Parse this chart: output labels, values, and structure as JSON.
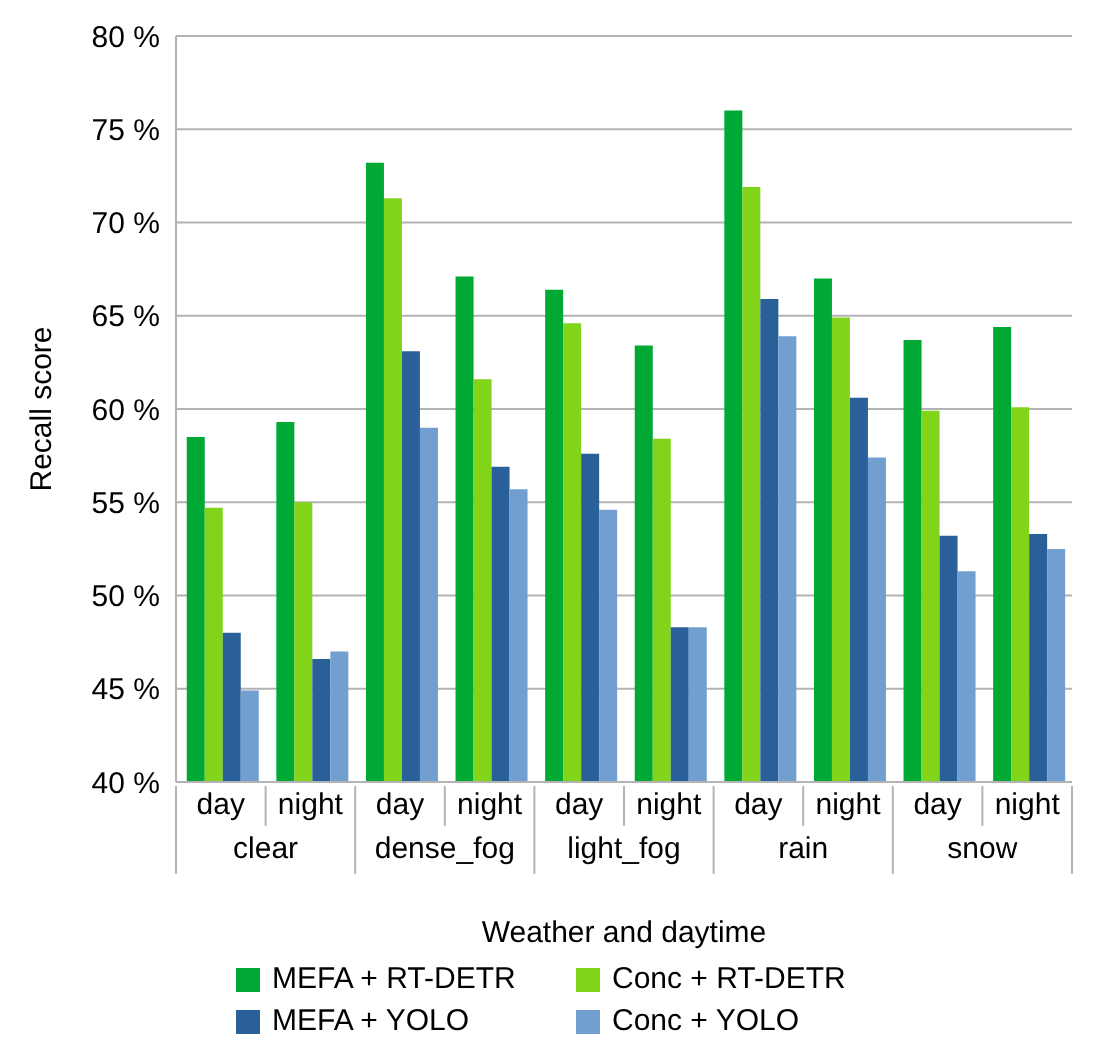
{
  "chart_data": {
    "type": "bar",
    "xlabel": "Weather and daytime",
    "ylabel": "Recall score",
    "categories": [
      "day",
      "night",
      "day",
      "night",
      "day",
      "night",
      "day",
      "night",
      "day",
      "night"
    ],
    "annotations": [
      "clear",
      "dense_fog",
      "light_fog",
      "rain",
      "snow"
    ],
    "series": [
      {
        "name": "MEFA + RT-DETR",
        "color": "#00a933",
        "values": [
          58.5,
          59.3,
          73.2,
          67.1,
          66.4,
          63.4,
          76.0,
          67.0,
          63.7,
          64.4
        ]
      },
      {
        "name": "Conc + RT-DETR",
        "color": "#81d41a",
        "values": [
          54.7,
          55.0,
          71.3,
          61.6,
          64.6,
          58.4,
          71.9,
          64.9,
          59.9,
          60.1
        ]
      },
      {
        "name": "MEFA + YOLO",
        "color": "#2a6099",
        "values": [
          48.0,
          46.6,
          63.1,
          56.9,
          57.6,
          48.3,
          65.9,
          60.6,
          53.2,
          53.3
        ]
      },
      {
        "name": "Conc + YOLO",
        "color": "#729fcf",
        "values": [
          44.9,
          47.0,
          59.0,
          55.7,
          54.6,
          48.3,
          63.9,
          57.4,
          51.3,
          52.5
        ]
      }
    ],
    "ylim": [
      40,
      80
    ],
    "yticks": [
      {
        "value": 40,
        "label": "40 %"
      },
      {
        "value": 45,
        "label": "45 %"
      },
      {
        "value": 50,
        "label": "50 %"
      },
      {
        "value": 55,
        "label": "55 %"
      },
      {
        "value": 60,
        "label": "60 %"
      },
      {
        "value": 65,
        "label": "65 %"
      },
      {
        "value": 70,
        "label": "70 %"
      },
      {
        "value": 75,
        "label": "75 %"
      },
      {
        "value": 80,
        "label": "80 %"
      }
    ],
    "grid": "y",
    "legend": "bottom"
  }
}
